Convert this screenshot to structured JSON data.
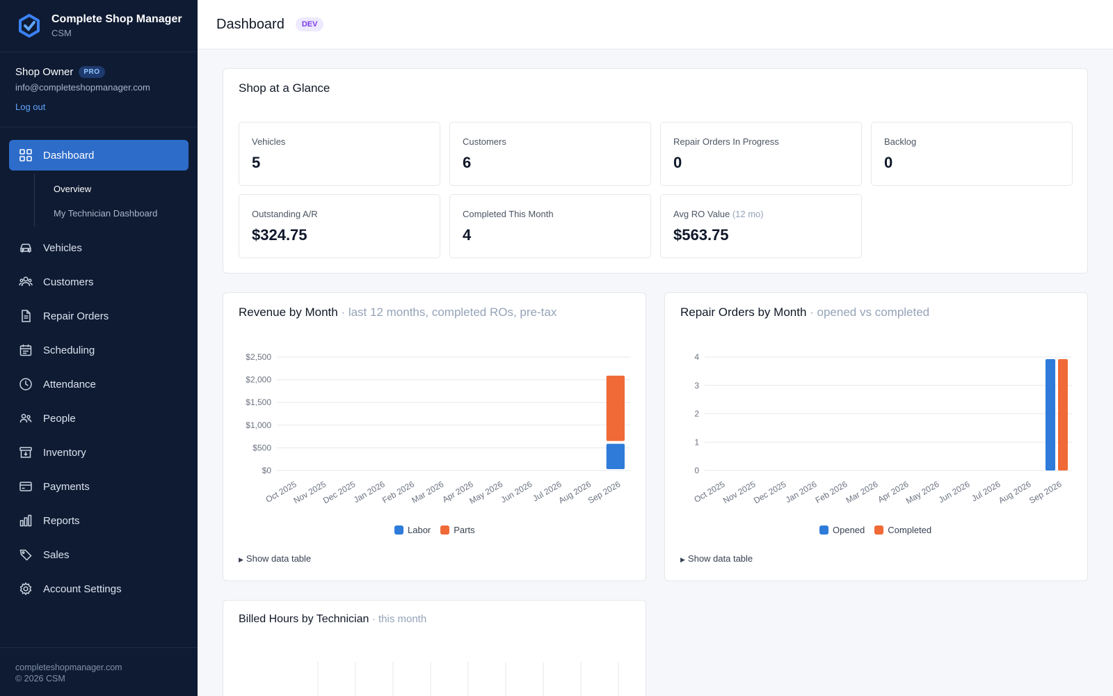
{
  "app": {
    "name": "Complete Shop Manager",
    "short": "CSM"
  },
  "user": {
    "name": "Shop Owner",
    "plan": "PRO",
    "email": "info@completeshopmanager.com",
    "logout": "Log out"
  },
  "nav": {
    "dashboard": {
      "label": "Dashboard",
      "icon": "grid-icon"
    },
    "sub": [
      {
        "label": "Overview"
      },
      {
        "label": "My Technician Dashboard"
      }
    ],
    "items": [
      {
        "label": "Vehicles",
        "icon": "car-icon"
      },
      {
        "label": "Customers",
        "icon": "users-icon"
      },
      {
        "label": "Repair Orders",
        "icon": "document-icon"
      },
      {
        "label": "Scheduling",
        "icon": "calendar-icon"
      },
      {
        "label": "Attendance",
        "icon": "clock-icon"
      },
      {
        "label": "People",
        "icon": "people-icon"
      },
      {
        "label": "Inventory",
        "icon": "archive-icon"
      },
      {
        "label": "Payments",
        "icon": "credit-card-icon"
      },
      {
        "label": "Reports",
        "icon": "bar-chart-icon"
      },
      {
        "label": "Sales",
        "icon": "tag-icon"
      },
      {
        "label": "Account Settings",
        "icon": "gear-icon"
      }
    ]
  },
  "footer": {
    "site": "completeshopmanager.com",
    "copyright": "© 2026 CSM"
  },
  "header": {
    "title": "Dashboard",
    "env": "DEV"
  },
  "glance": {
    "title": "Shop at a Glance",
    "stats": [
      {
        "label": "Vehicles",
        "value": "5"
      },
      {
        "label": "Customers",
        "value": "6"
      },
      {
        "label": "Repair Orders In Progress",
        "value": "0"
      },
      {
        "label": "Backlog",
        "value": "0"
      },
      {
        "label": "Outstanding A/R",
        "value": "$324.75"
      },
      {
        "label": "Completed This Month",
        "value": "4"
      },
      {
        "label": "Avg RO Value",
        "label_suffix": "(12 mo)",
        "value": "$563.75"
      }
    ]
  },
  "revenue_card": {
    "title": "Revenue by Month",
    "subtitle": "· last 12 months, completed ROs, pre-tax",
    "show_table": "Show data table"
  },
  "ro_card": {
    "title": "Repair Orders by Month",
    "subtitle": "· opened vs completed",
    "show_table": "Show data table"
  },
  "hours_card": {
    "title": "Billed Hours by Technician",
    "subtitle": "· this month"
  },
  "colors": {
    "blue": "#2e7bd9",
    "orange": "#ef6a36",
    "sidebar": "#0f1b33",
    "accent": "#2d6cc9"
  },
  "chart_data": [
    {
      "type": "bar",
      "stacked": true,
      "title": "Revenue by Month",
      "categories": [
        "Oct 2025",
        "Nov 2025",
        "Dec 2025",
        "Jan 2026",
        "Feb 2026",
        "Mar 2026",
        "Apr 2026",
        "May 2026",
        "Jun 2026",
        "Jul 2026",
        "Aug 2026",
        "Sep 2026"
      ],
      "series": [
        {
          "name": "Labor",
          "color": "#2e7bd9",
          "values": [
            0,
            0,
            0,
            0,
            0,
            0,
            0,
            0,
            0,
            0,
            0,
            620
          ]
        },
        {
          "name": "Parts",
          "color": "#ef6a36",
          "values": [
            0,
            0,
            0,
            0,
            0,
            0,
            0,
            0,
            0,
            0,
            0,
            1500
          ]
        }
      ],
      "yticks": [
        "$0",
        "$500",
        "$1,000",
        "$1,500",
        "$2,000",
        "$2,500"
      ],
      "ylim": [
        0,
        2500
      ],
      "grid": true,
      "legend": "bottom"
    },
    {
      "type": "bar",
      "stacked": false,
      "title": "Repair Orders by Month",
      "categories": [
        "Oct 2025",
        "Nov 2025",
        "Dec 2025",
        "Jan 2026",
        "Feb 2026",
        "Mar 2026",
        "Apr 2026",
        "May 2026",
        "Jun 2026",
        "Jul 2026",
        "Aug 2026",
        "Sep 2026"
      ],
      "series": [
        {
          "name": "Opened",
          "color": "#2e7bd9",
          "values": [
            0,
            0,
            0,
            0,
            0,
            0,
            0,
            0,
            0,
            0,
            0,
            4
          ]
        },
        {
          "name": "Completed",
          "color": "#ef6a36",
          "values": [
            0,
            0,
            0,
            0,
            0,
            0,
            0,
            0,
            0,
            0,
            0,
            4
          ]
        }
      ],
      "yticks": [
        "0",
        "1",
        "2",
        "3",
        "4"
      ],
      "ylim": [
        0,
        4
      ],
      "grid": true,
      "legend": "bottom"
    }
  ]
}
